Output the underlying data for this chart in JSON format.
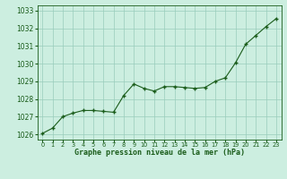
{
  "x": [
    0,
    1,
    2,
    3,
    4,
    5,
    6,
    7,
    8,
    9,
    10,
    11,
    12,
    13,
    14,
    15,
    16,
    17,
    18,
    19,
    20,
    21,
    22,
    23
  ],
  "y": [
    1026.05,
    1026.35,
    1027.0,
    1027.2,
    1027.35,
    1027.35,
    1027.3,
    1027.25,
    1028.2,
    1028.85,
    1028.6,
    1028.45,
    1028.7,
    1028.7,
    1028.65,
    1028.6,
    1028.65,
    1029.0,
    1029.2,
    1030.05,
    1031.1,
    1031.6,
    1032.1,
    1032.55
  ],
  "ylim": [
    1025.7,
    1033.3
  ],
  "yticks": [
    1026,
    1027,
    1028,
    1029,
    1030,
    1031,
    1032,
    1033
  ],
  "xticks": [
    0,
    1,
    2,
    3,
    4,
    5,
    6,
    7,
    8,
    9,
    10,
    11,
    12,
    13,
    14,
    15,
    16,
    17,
    18,
    19,
    20,
    21,
    22,
    23
  ],
  "xlabel": "Graphe pression niveau de la mer (hPa)",
  "line_color": "#1a5c1a",
  "marker_color": "#1a5c1a",
  "bg_color": "#cceee0",
  "grid_color": "#99ccbb",
  "border_color": "#1a5c1a",
  "xlabel_color": "#1a5c1a",
  "tick_color": "#1a5c1a",
  "figsize": [
    3.2,
    2.0
  ],
  "dpi": 100
}
